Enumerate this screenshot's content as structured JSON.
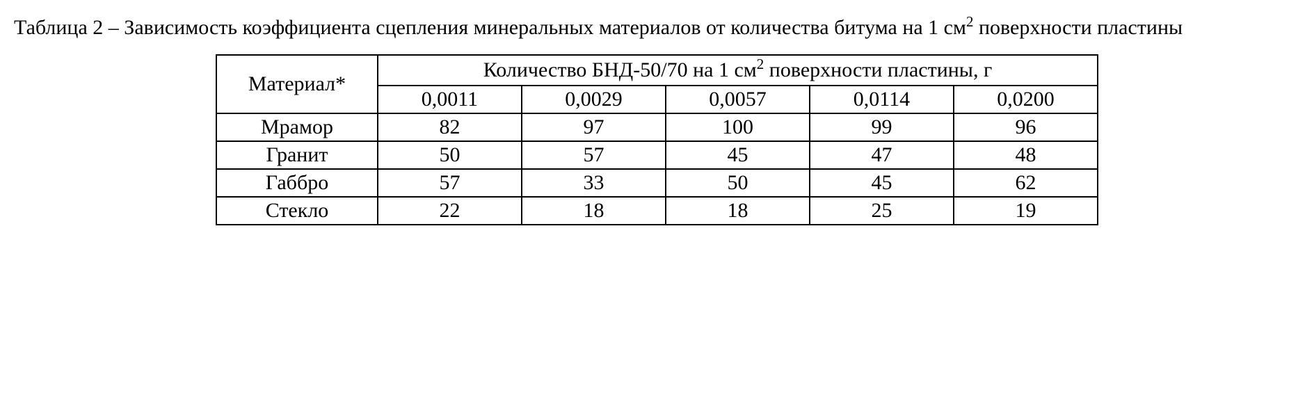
{
  "caption": {
    "prefix": "Таблица 2 – Зависимость коэффициента сцепления минеральных материалов от количества битума на 1 см",
    "sup1": "2",
    "suffix": " поверхности пластины"
  },
  "table": {
    "material_header": "Материал*",
    "group_header_prefix": "Количество БНД-50/70 на 1 см",
    "group_header_sup": "2",
    "group_header_suffix": " поверхности пластины, г",
    "columns": [
      "0,0011",
      "0,0029",
      "0,0057",
      "0,0114",
      "0,0200"
    ],
    "rows": [
      {
        "material": "Мрамор",
        "values": [
          "82",
          "97",
          "100",
          "99",
          "96"
        ]
      },
      {
        "material": "Гранит",
        "values": [
          "50",
          "57",
          "45",
          "47",
          "48"
        ]
      },
      {
        "material": "Габбро",
        "values": [
          "57",
          "33",
          "50",
          "45",
          "62"
        ]
      },
      {
        "material": "Стекло",
        "values": [
          "22",
          "18",
          "18",
          "25",
          "19"
        ]
      }
    ],
    "border_color": "#000000",
    "background_color": "#ffffff",
    "font_size_pt": 22
  }
}
